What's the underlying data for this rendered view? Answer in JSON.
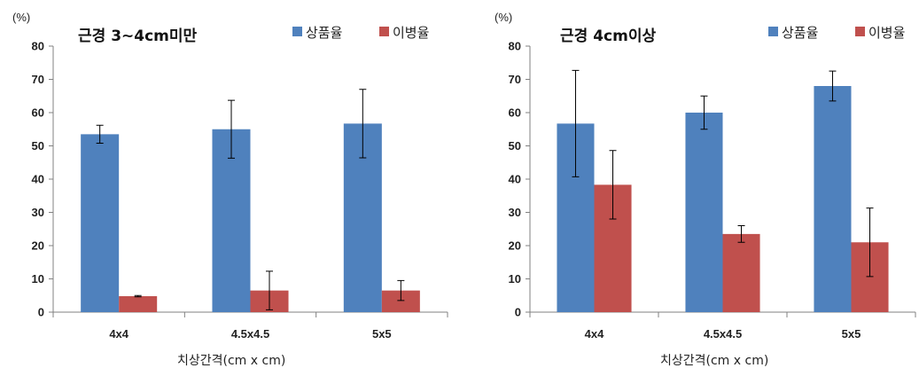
{
  "colors": {
    "series1": "#4f81bd",
    "series2": "#c0504d",
    "axis": "#808080",
    "error_bar": "#000000"
  },
  "chart_data": [
    {
      "type": "bar",
      "title": "근경 3~4cm미만",
      "ylabel": "(%)",
      "xlabel": "치상간격(cm x cm)",
      "categories": [
        "4x4",
        "4.5x4.5",
        "5x5"
      ],
      "ylim": [
        0,
        80
      ],
      "yticks": [
        0,
        10,
        20,
        30,
        40,
        50,
        60,
        70,
        80
      ],
      "grid": false,
      "legend_position": "top-right",
      "series": [
        {
          "name": "상품율",
          "values": [
            53.5,
            55.0,
            56.7
          ],
          "errors": [
            2.7,
            8.7,
            10.3
          ]
        },
        {
          "name": "이병율",
          "values": [
            4.8,
            6.5,
            6.5
          ],
          "errors": [
            0.2,
            5.8,
            3.0
          ]
        }
      ]
    },
    {
      "type": "bar",
      "title": "근경 4cm이상",
      "ylabel": "(%)",
      "xlabel": "치상간격(cm x cm)",
      "categories": [
        "4x4",
        "4.5x4.5",
        "5x5"
      ],
      "ylim": [
        0,
        80
      ],
      "yticks": [
        0,
        10,
        20,
        30,
        40,
        50,
        60,
        70,
        80
      ],
      "grid": false,
      "legend_position": "top-right",
      "series": [
        {
          "name": "상품율",
          "values": [
            56.7,
            60.0,
            68.0
          ],
          "errors": [
            16.0,
            5.0,
            4.5
          ]
        },
        {
          "name": "이병율",
          "values": [
            38.3,
            23.5,
            21.0
          ],
          "errors": [
            10.3,
            2.5,
            10.3
          ]
        }
      ]
    }
  ]
}
